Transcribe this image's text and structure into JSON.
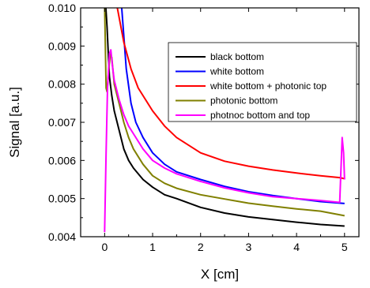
{
  "chart_data": {
    "type": "line",
    "title": "",
    "xlabel": "X [cm]",
    "ylabel": "Signal [a.u.]",
    "xlim": [
      -0.5,
      5.3
    ],
    "ylim": [
      0.004,
      0.01
    ],
    "x_ticks": [
      0,
      1,
      2,
      3,
      4,
      5
    ],
    "x_tick_labels": [
      "0",
      "1",
      "2",
      "3",
      "4",
      "5"
    ],
    "y_ticks": [
      0.004,
      0.005,
      0.006,
      0.007,
      0.008,
      0.009,
      0.01
    ],
    "y_tick_labels": [
      "0.004",
      "0.005",
      "0.006",
      "0.007",
      "0.008",
      "0.009",
      "0.010"
    ],
    "grid": false,
    "legend_position": "top-right",
    "series": [
      {
        "name": "black bottom",
        "color": "#000000",
        "x": [
          0.02,
          0.05,
          0.08,
          0.1,
          0.15,
          0.2,
          0.3,
          0.4,
          0.5,
          0.6,
          0.8,
          1.0,
          1.25,
          1.5,
          2.0,
          2.5,
          3.0,
          3.5,
          4.0,
          4.5,
          5.0
        ],
        "y": [
          0.0101,
          0.0095,
          0.0087,
          0.0082,
          0.0077,
          0.0073,
          0.0068,
          0.0063,
          0.006,
          0.0058,
          0.0055,
          0.0053,
          0.0051,
          0.005,
          0.00477,
          0.00462,
          0.00452,
          0.00445,
          0.00438,
          0.00432,
          0.00428
        ]
      },
      {
        "name": "white bottom",
        "color": "#0000ff",
        "x": [
          0.35,
          0.45,
          0.55,
          0.65,
          0.8,
          1.0,
          1.25,
          1.5,
          2.0,
          2.5,
          3.0,
          3.5,
          4.0,
          4.5,
          5.0
        ],
        "y": [
          0.0101,
          0.0084,
          0.0075,
          0.007,
          0.0066,
          0.0062,
          0.0059,
          0.0057,
          0.0055,
          0.00532,
          0.00518,
          0.00508,
          0.005,
          0.00492,
          0.00487
        ]
      },
      {
        "name": "white bottom + photonic top",
        "color": "#ff0000",
        "x": [
          0.25,
          0.4,
          0.55,
          0.7,
          0.85,
          1.0,
          1.25,
          1.5,
          2.0,
          2.5,
          3.0,
          3.5,
          4.0,
          4.5,
          4.9,
          5.0
        ],
        "y": [
          0.0101,
          0.0091,
          0.0084,
          0.0079,
          0.0076,
          0.0073,
          0.0069,
          0.0066,
          0.0062,
          0.00598,
          0.00585,
          0.00575,
          0.00567,
          0.0056,
          0.00555,
          0.00552
        ]
      },
      {
        "name": "photonic bottom",
        "color": "#808000",
        "x": [
          0.0,
          0.03,
          0.05,
          0.08,
          0.12,
          0.15,
          0.2,
          0.3,
          0.4,
          0.5,
          0.6,
          0.8,
          1.0,
          1.25,
          1.5,
          2.0,
          2.5,
          3.0,
          3.5,
          4.0,
          4.5,
          5.0
        ],
        "y": [
          0.0101,
          0.0079,
          0.0078,
          0.0083,
          0.0088,
          0.0087,
          0.008,
          0.0075,
          0.007,
          0.0066,
          0.0063,
          0.0059,
          0.0056,
          0.0054,
          0.00527,
          0.0051,
          0.00499,
          0.00488,
          0.0048,
          0.00473,
          0.00467,
          0.00455
        ]
      },
      {
        "name": "photnoc bottom and top",
        "color": "#ff00ff",
        "x": [
          0.0,
          0.03,
          0.06,
          0.1,
          0.13,
          0.16,
          0.2,
          0.3,
          0.4,
          0.5,
          0.6,
          0.8,
          1.0,
          1.25,
          1.5,
          2.0,
          2.5,
          3.0,
          3.5,
          4.0,
          4.5,
          4.9,
          4.95,
          4.98,
          5.0
        ],
        "y": [
          0.00412,
          0.0062,
          0.0079,
          0.0088,
          0.0089,
          0.0085,
          0.0081,
          0.0076,
          0.0072,
          0.0069,
          0.0067,
          0.0063,
          0.006,
          0.0058,
          0.00565,
          0.00545,
          0.00528,
          0.00515,
          0.00505,
          0.005,
          0.00495,
          0.0049,
          0.0066,
          0.0062,
          0.0055
        ]
      }
    ]
  }
}
